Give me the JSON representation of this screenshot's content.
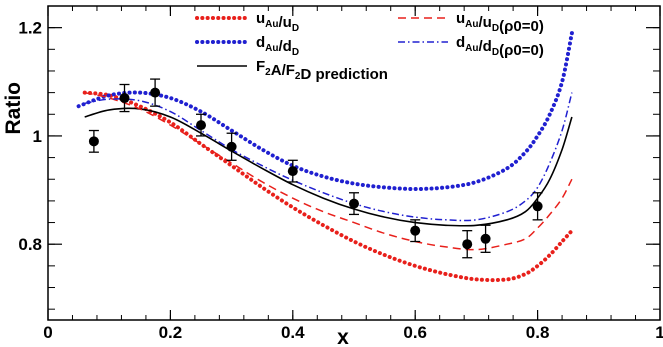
{
  "chart_data": {
    "type": "line",
    "xlabel": "x",
    "ylabel": "Ratio",
    "xlim": [
      0,
      1
    ],
    "ylim": [
      0.66,
      1.24
    ],
    "x_ticks": [
      "0",
      "0.2",
      "0.4",
      "0.6",
      "0.8",
      "1"
    ],
    "x_tick_values": [
      0,
      0.2,
      0.4,
      0.6,
      0.8,
      1
    ],
    "y_ticks": [
      "0.8",
      "1",
      "1.2"
    ],
    "y_tick_values": [
      0.8,
      1.0,
      1.2
    ],
    "grid": false,
    "legend": {
      "placement": "top",
      "entries": [
        {
          "main": "u",
          "sub1": "Au",
          "mid": "/u",
          "sub2": "D",
          "tail": ""
        },
        {
          "main": "d",
          "sub1": "Au",
          "mid": "/d",
          "sub2": "D",
          "tail": ""
        },
        {
          "main": "F",
          "sub1": "2",
          "mid": "A/F",
          "sub2": "2",
          "tail": "D prediction"
        },
        {
          "main": "u",
          "sub1": "Au",
          "mid": "/u",
          "sub2": "D",
          "tail": "(ρ0=0)"
        },
        {
          "main": "d",
          "sub1": "Au",
          "mid": "/d",
          "sub2": "D",
          "tail": "(ρ0=0)"
        }
      ]
    },
    "series": [
      {
        "color": "#e8201b",
        "style": "dotted",
        "x": [
          0.06,
          0.1,
          0.15,
          0.2,
          0.25,
          0.3,
          0.35,
          0.4,
          0.45,
          0.5,
          0.55,
          0.6,
          0.65,
          0.7,
          0.75,
          0.78,
          0.8,
          0.82,
          0.84,
          0.856
        ],
        "y": [
          1.08,
          1.075,
          1.055,
          1.025,
          0.985,
          0.945,
          0.905,
          0.868,
          0.835,
          0.805,
          0.78,
          0.76,
          0.745,
          0.735,
          0.735,
          0.745,
          0.76,
          0.78,
          0.805,
          0.825
        ]
      },
      {
        "color": "#2020d0",
        "style": "dotted",
        "x": [
          0.05,
          0.1,
          0.15,
          0.2,
          0.25,
          0.3,
          0.35,
          0.4,
          0.45,
          0.5,
          0.55,
          0.6,
          0.65,
          0.7,
          0.75,
          0.78,
          0.8,
          0.82,
          0.84,
          0.856
        ],
        "y": [
          1.055,
          1.075,
          1.08,
          1.07,
          1.045,
          1.01,
          0.975,
          0.945,
          0.925,
          0.912,
          0.905,
          0.902,
          0.905,
          0.915,
          0.94,
          0.97,
          1.0,
          1.04,
          1.1,
          1.19
        ]
      },
      {
        "color": "#000000",
        "style": "solid",
        "x": [
          0.06,
          0.1,
          0.15,
          0.2,
          0.25,
          0.3,
          0.35,
          0.4,
          0.45,
          0.5,
          0.55,
          0.6,
          0.65,
          0.7,
          0.75,
          0.78,
          0.8,
          0.82,
          0.84,
          0.856
        ],
        "y": [
          1.035,
          1.048,
          1.05,
          1.035,
          1.005,
          0.972,
          0.94,
          0.91,
          0.885,
          0.865,
          0.85,
          0.84,
          0.835,
          0.835,
          0.845,
          0.86,
          0.885,
          0.92,
          0.975,
          1.035
        ]
      },
      {
        "color": "#e8201b",
        "style": "dashed",
        "x": [
          0.06,
          0.1,
          0.15,
          0.2,
          0.25,
          0.3,
          0.35,
          0.4,
          0.45,
          0.5,
          0.55,
          0.6,
          0.65,
          0.7,
          0.75,
          0.78,
          0.8,
          0.82,
          0.84,
          0.856
        ],
        "y": [
          1.08,
          1.07,
          1.05,
          1.02,
          0.985,
          0.95,
          0.915,
          0.885,
          0.86,
          0.84,
          0.82,
          0.805,
          0.795,
          0.79,
          0.8,
          0.81,
          0.83,
          0.855,
          0.885,
          0.92
        ]
      },
      {
        "color": "#2020d0",
        "style": "dashdot",
        "x": [
          0.06,
          0.1,
          0.15,
          0.2,
          0.25,
          0.3,
          0.35,
          0.4,
          0.45,
          0.5,
          0.55,
          0.6,
          0.65,
          0.7,
          0.75,
          0.78,
          0.8,
          0.82,
          0.84,
          0.856
        ],
        "y": [
          1.06,
          1.068,
          1.065,
          1.045,
          1.01,
          0.975,
          0.945,
          0.918,
          0.895,
          0.875,
          0.86,
          0.85,
          0.845,
          0.845,
          0.86,
          0.88,
          0.905,
          0.95,
          1.01,
          1.08
        ]
      }
    ],
    "points": {
      "marker": "filled-circle",
      "x": [
        0.075,
        0.125,
        0.175,
        0.25,
        0.3,
        0.4,
        0.5,
        0.6,
        0.685,
        0.715,
        0.8
      ],
      "y": [
        0.99,
        1.07,
        1.08,
        1.02,
        0.98,
        0.935,
        0.875,
        0.825,
        0.8,
        0.81,
        0.87
      ],
      "err": [
        0.02,
        0.025,
        0.025,
        0.02,
        0.025,
        0.02,
        0.02,
        0.02,
        0.025,
        0.025,
        0.025
      ]
    }
  }
}
